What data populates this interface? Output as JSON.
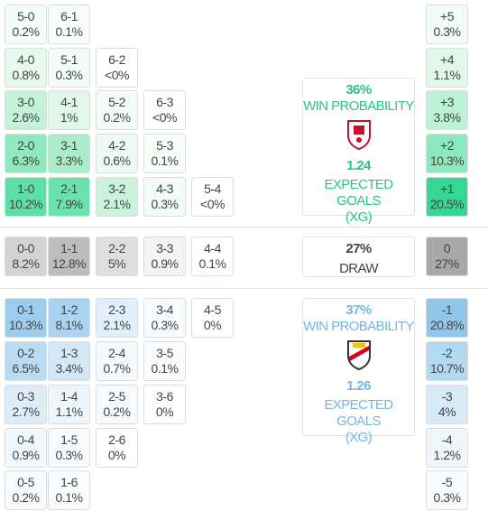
{
  "sections": [
    {
      "rows": [
        {
          "top": 5,
          "cells": [
            {
              "score": "5-0",
              "prob": "0.2%",
              "color": "#f4fcf8"
            },
            {
              "score": "6-1",
              "prob": "0.1%",
              "color": "#f8fdfa"
            }
          ],
          "total": {
            "score": "+5",
            "prob": "0.3%",
            "color": "#f2fbf6"
          }
        },
        {
          "top": 53,
          "cells": [
            {
              "score": "4-0",
              "prob": "0.8%",
              "color": "#e6f9ef"
            },
            {
              "score": "5-1",
              "prob": "0.3%",
              "color": "#f2fbf6"
            },
            {
              "score": "6-2",
              "prob": "<0%",
              "color": "#ffffff"
            }
          ],
          "total": {
            "score": "+4",
            "prob": "1.1%",
            "color": "#e0f8ea"
          }
        },
        {
          "top": 100,
          "cells": [
            {
              "score": "3-0",
              "prob": "2.6%",
              "color": "#c3f2d9"
            },
            {
              "score": "4-1",
              "prob": "1%",
              "color": "#dff8ea"
            },
            {
              "score": "5-2",
              "prob": "0.2%",
              "color": "#f4fcf8"
            },
            {
              "score": "6-3",
              "prob": "<0%",
              "color": "#ffffff"
            }
          ],
          "total": {
            "score": "+3",
            "prob": "3.8%",
            "color": "#bdf1d5"
          }
        },
        {
          "top": 148,
          "cells": [
            {
              "score": "2-0",
              "prob": "6.3%",
              "color": "#90e8bf"
            },
            {
              "score": "3-1",
              "prob": "3.3%",
              "color": "#a9edcb"
            },
            {
              "score": "4-2",
              "prob": "0.6%",
              "color": "#ebfaf2"
            },
            {
              "score": "5-3",
              "prob": "0.1%",
              "color": "#f8fdfa"
            }
          ],
          "total": {
            "score": "+2",
            "prob": "10.3%",
            "color": "#8ee8be"
          }
        },
        {
          "top": 196,
          "cells": [
            {
              "score": "1-0",
              "prob": "10.2%",
              "color": "#5ddfa5"
            },
            {
              "score": "2-1",
              "prob": "7.9%",
              "color": "#6be2ac"
            },
            {
              "score": "3-2",
              "prob": "2.1%",
              "color": "#c9f3dd"
            },
            {
              "score": "4-3",
              "prob": "0.3%",
              "color": "#f2fbf6"
            },
            {
              "score": "5-4",
              "prob": "<0%",
              "color": "#ffffff"
            }
          ],
          "total": {
            "score": "+1",
            "prob": "20.5%",
            "color": "#36d693"
          }
        }
      ]
    },
    {
      "rows": [
        {
          "top": 262,
          "cells": [
            {
              "score": "0-0",
              "prob": "8.2%",
              "color": "#d3d3d3"
            },
            {
              "score": "1-1",
              "prob": "12.8%",
              "color": "#bdbdbd"
            },
            {
              "score": "2-2",
              "prob": "5%",
              "color": "#dedede"
            },
            {
              "score": "3-3",
              "prob": "0.9%",
              "color": "#f3f3f3"
            },
            {
              "score": "4-4",
              "prob": "0.1%",
              "color": "#ffffff"
            }
          ],
          "total": {
            "score": "0",
            "prob": "27%",
            "color": "#a8a8a8"
          }
        }
      ]
    },
    {
      "rows": [
        {
          "top": 330,
          "cells": [
            {
              "score": "0-1",
              "prob": "10.3%",
              "color": "#9dcdee"
            },
            {
              "score": "1-2",
              "prob": "8.1%",
              "color": "#a9d3f0"
            },
            {
              "score": "2-3",
              "prob": "2.1%",
              "color": "#e0effa"
            },
            {
              "score": "3-4",
              "prob": "0.3%",
              "color": "#f7fbfe"
            },
            {
              "score": "4-5",
              "prob": "0%",
              "color": "#ffffff"
            }
          ],
          "total": {
            "score": "-1",
            "prob": "20.8%",
            "color": "#8fc6ea"
          }
        },
        {
          "top": 378,
          "cells": [
            {
              "score": "0-2",
              "prob": "6.5%",
              "color": "#b9dcf3"
            },
            {
              "score": "1-3",
              "prob": "3.4%",
              "color": "#d2e8f7"
            },
            {
              "score": "2-4",
              "prob": "0.7%",
              "color": "#f3f9fd"
            },
            {
              "score": "3-5",
              "prob": "0.1%",
              "color": "#fafcfe"
            }
          ],
          "total": {
            "score": "-2",
            "prob": "10.7%",
            "color": "#b3d9f1"
          }
        },
        {
          "top": 426,
          "cells": [
            {
              "score": "0-3",
              "prob": "2.7%",
              "color": "#dcedf8"
            },
            {
              "score": "1-4",
              "prob": "1.1%",
              "color": "#eef6fc"
            },
            {
              "score": "2-5",
              "prob": "0.2%",
              "color": "#f8fbfe"
            },
            {
              "score": "3-6",
              "prob": "0%",
              "color": "#ffffff"
            }
          ],
          "total": {
            "score": "-3",
            "prob": "4%",
            "color": "#d6eaf7"
          }
        },
        {
          "top": 474,
          "cells": [
            {
              "score": "0-4",
              "prob": "0.9%",
              "color": "#f1f8fd"
            },
            {
              "score": "1-5",
              "prob": "0.3%",
              "color": "#f7fbfe"
            },
            {
              "score": "2-6",
              "prob": "0%",
              "color": "#ffffff"
            }
          ],
          "total": {
            "score": "-4",
            "prob": "1.2%",
            "color": "#eef6fc"
          }
        },
        {
          "top": 521,
          "cells": [
            {
              "score": "0-5",
              "prob": "0.2%",
              "color": "#f8fbfe"
            },
            {
              "score": "1-6",
              "prob": "0.1%",
              "color": "#fafcfe"
            }
          ],
          "total": {
            "score": "-5",
            "prob": "0.3%",
            "color": "#f7fbfe"
          }
        }
      ]
    }
  ],
  "home_panel": {
    "win_pct": "36%",
    "win_label": "WIN PROBABILITY",
    "xg": "1.24",
    "xg_label": "EXPECTED GOALS",
    "xg_sub": "(XG)"
  },
  "draw_panel": {
    "pct": "27%",
    "label": "DRAW"
  },
  "away_panel": {
    "win_pct": "37%",
    "win_label": "WIN PROBABILITY",
    "xg": "1.26",
    "xg_label": "EXPECTED GOALS",
    "xg_sub": "(XG)"
  }
}
